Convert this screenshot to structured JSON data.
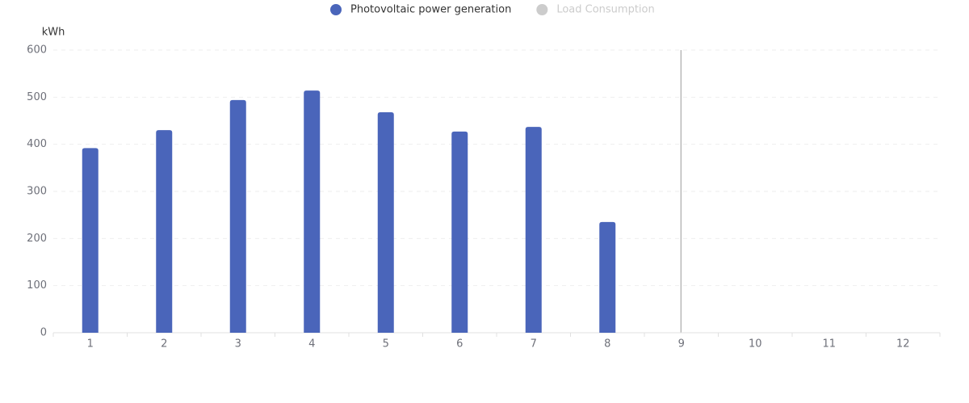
{
  "chart_data": {
    "type": "bar",
    "y_axis_label": "kWh",
    "categories": [
      "1",
      "2",
      "3",
      "4",
      "5",
      "6",
      "7",
      "8",
      "9",
      "10",
      "11",
      "12"
    ],
    "series": [
      {
        "name": "Photovoltaic power generation",
        "color": "#4a65ba",
        "values": [
          392,
          430,
          494,
          514,
          468,
          427,
          437,
          235,
          null,
          null,
          null,
          null
        ]
      },
      {
        "name": "Load Consumption",
        "color": "#cccccc",
        "values": [
          null,
          null,
          null,
          null,
          null,
          null,
          null,
          null,
          null,
          null,
          null,
          null
        ]
      }
    ],
    "ylim": [
      0,
      600
    ],
    "yticks": [
      0,
      100,
      200,
      300,
      400,
      500,
      600
    ],
    "grid": true
  }
}
